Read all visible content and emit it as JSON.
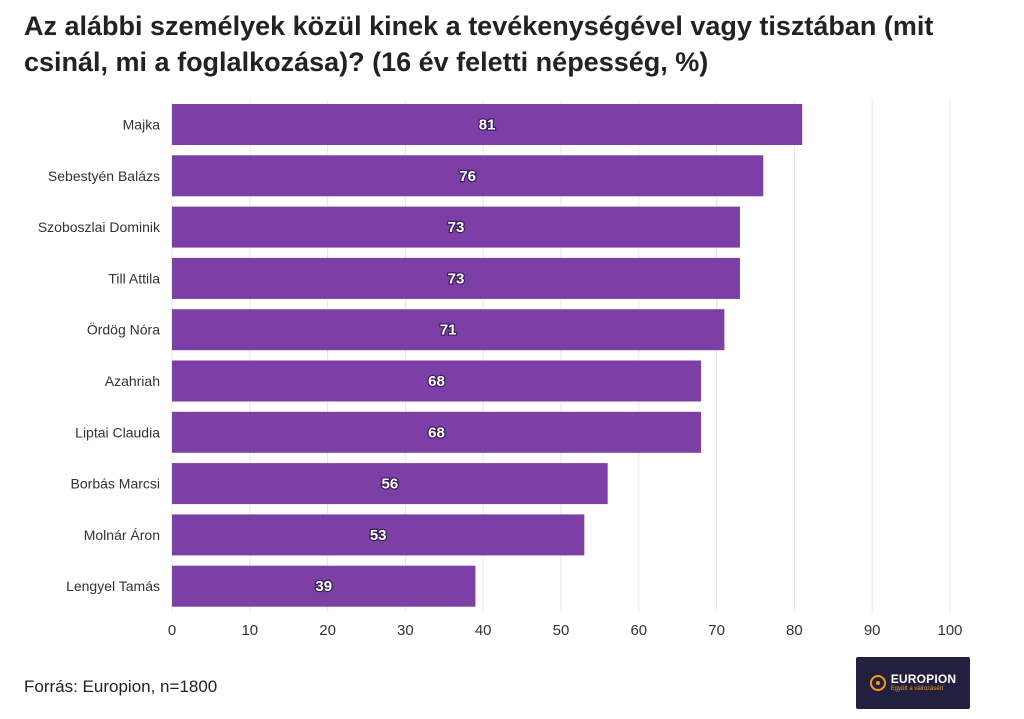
{
  "chart_data": {
    "type": "bar",
    "orientation": "horizontal",
    "title": "Az alábbi személyek közül kinek a tevékenységével vagy tisztában (mit csinál, mi a foglalkozása)? (16 év feletti népesség, %)",
    "categories": [
      "Majka",
      "Sebestyén Balázs",
      "Szoboszlai Dominik",
      "Till Attila",
      "Ördög Nóra",
      "Azahriah",
      "Liptai Claudia",
      "Borbás Marcsi",
      "Molnár Áron",
      "Lengyel Tamás"
    ],
    "values": [
      81,
      76,
      73,
      73,
      71,
      68,
      68,
      56,
      53,
      39
    ],
    "xlim": [
      0,
      100
    ],
    "xticks": [
      0,
      10,
      20,
      30,
      40,
      50,
      60,
      70,
      80,
      90,
      100
    ],
    "grid": true,
    "bar_color": "#7b3fa5",
    "value_labels": true
  },
  "footer": {
    "source": "Forrás: Europion, n=1800"
  },
  "logo": {
    "name": "EUROPION",
    "tagline": "Együtt a változásért",
    "icon": "europion-logo-icon"
  }
}
